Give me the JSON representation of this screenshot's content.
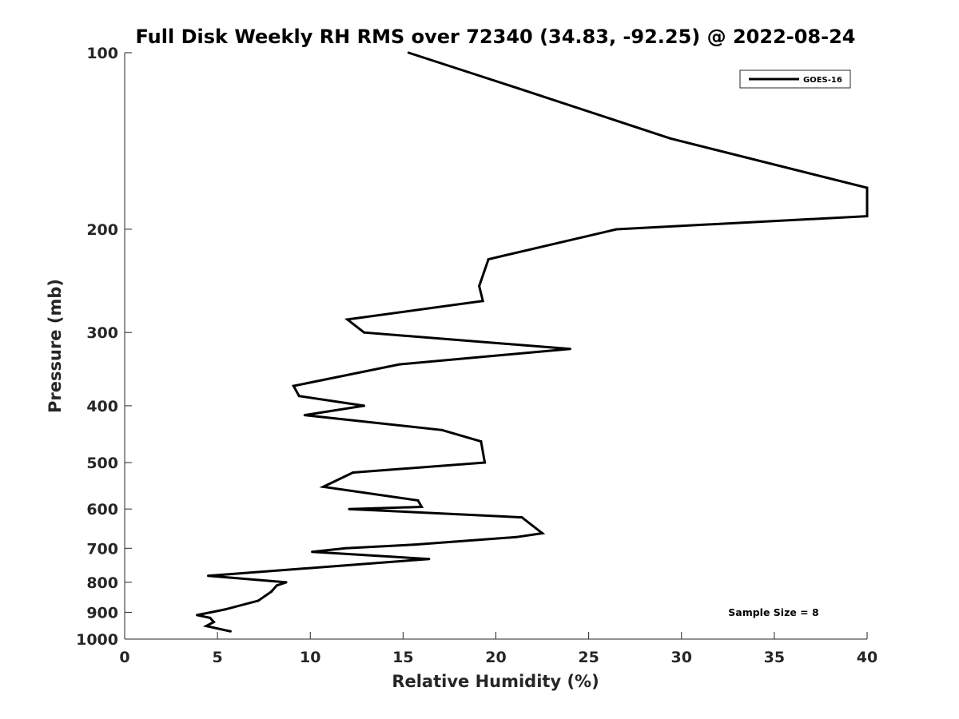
{
  "chart_data": {
    "type": "line",
    "title": "Full Disk Weekly RH RMS over 72340 (34.83, -92.25) @ 2022-08-24",
    "xlabel": "Relative Humidity (%)",
    "ylabel": "Pressure (mb)",
    "xlim": [
      0,
      40
    ],
    "ylim": [
      100,
      1000
    ],
    "y_scale": "log",
    "y_reversed": true,
    "x_ticks": [
      "0",
      "5",
      "10",
      "15",
      "20",
      "25",
      "30",
      "35",
      "40"
    ],
    "y_ticks": [
      "100",
      "200",
      "300",
      "400",
      "500",
      "600",
      "700",
      "800",
      "900",
      "1000"
    ],
    "grid": false,
    "legend": {
      "position": "top-right",
      "entries": [
        "GOES-16"
      ]
    },
    "annotation": "Sample Size = 8",
    "series": [
      {
        "name": "GOES-16",
        "color": "#000000",
        "x": [
          15.3,
          21.2,
          29.4,
          40.0,
          40.0,
          26.5,
          19.6,
          19.1,
          19.3,
          12.0,
          12.9,
          24.0,
          14.8,
          9.1,
          9.4,
          12.9,
          9.7,
          17.1,
          19.2,
          19.4,
          12.3,
          10.7,
          15.8,
          16.0,
          12.1,
          21.4,
          22.5,
          21.1,
          15.6,
          11.9,
          10.1,
          16.4,
          4.5,
          8.7,
          8.2,
          7.9,
          7.2,
          5.4,
          3.9,
          4.6,
          4.8,
          4.4,
          5.7
        ],
        "y": [
          100,
          115,
          140,
          170,
          190,
          200,
          225,
          250,
          265,
          285,
          300,
          320,
          340,
          370,
          385,
          400,
          415,
          440,
          460,
          500,
          520,
          550,
          580,
          595,
          600,
          620,
          660,
          670,
          690,
          700,
          710,
          730,
          780,
          800,
          810,
          830,
          860,
          890,
          910,
          920,
          935,
          950,
          970
        ]
      }
    ]
  }
}
